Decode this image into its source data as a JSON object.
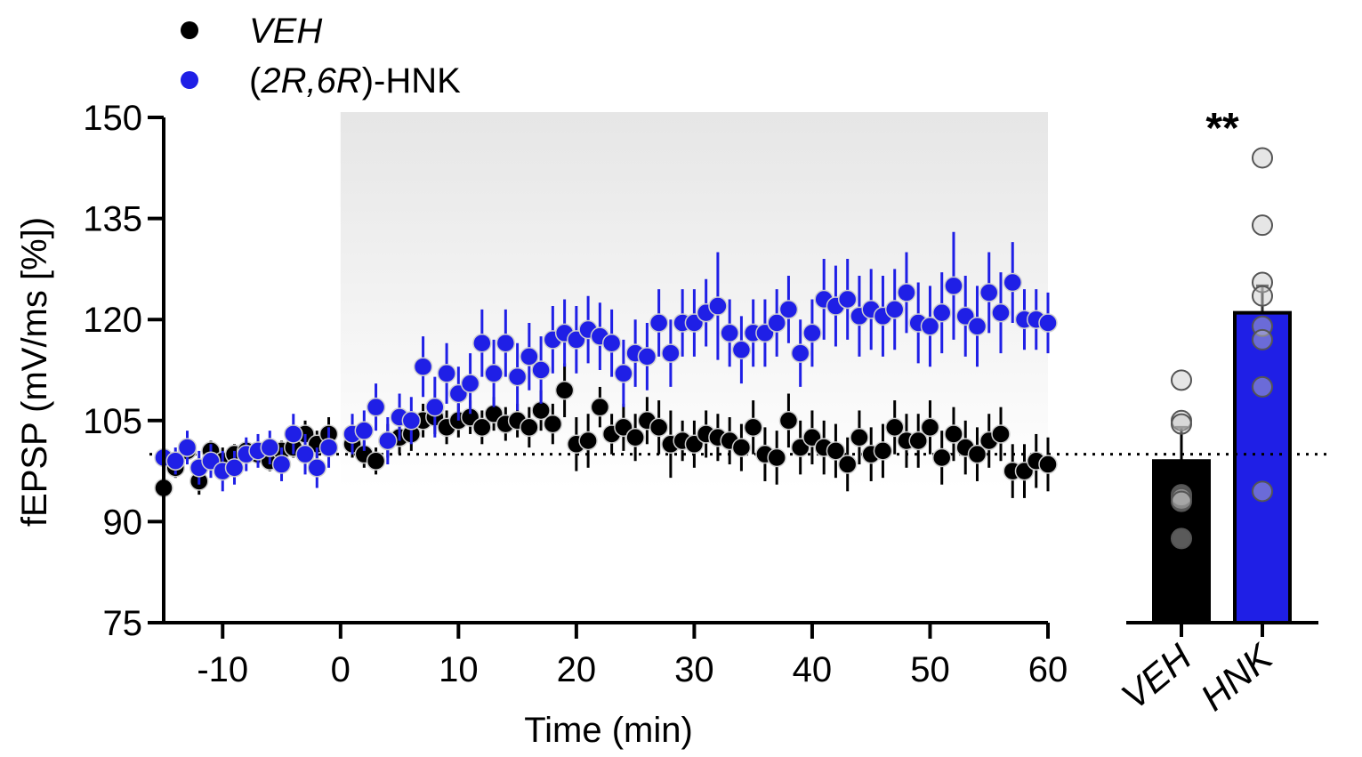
{
  "chart_data": [
    {
      "type": "scatter",
      "xlabel": "Time (min)",
      "ylabel": "fEPSP (mV/ms [%])",
      "xlim": [
        -15,
        60
      ],
      "ylim": [
        75,
        150
      ],
      "x_ticks": [
        -10,
        0,
        10,
        20,
        30,
        40,
        50,
        60
      ],
      "x_tick_labels": [
        "-10",
        "0",
        "10",
        "20",
        "30",
        "40",
        "50",
        "60"
      ],
      "y_ticks": [
        75,
        90,
        105,
        120,
        135,
        150
      ],
      "y_tick_labels": [
        "75",
        "90",
        "105",
        "120",
        "135",
        "150"
      ],
      "baseline": 100,
      "shaded_region": [
        0,
        60
      ],
      "legend_position": "top-left",
      "legend": [
        {
          "label_pre": "",
          "label_ital": "VEH",
          "label_post": "",
          "color": "#000000"
        },
        {
          "label_pre": "(",
          "label_ital": "2R,6R",
          "label_post": ")-HNK",
          "color": "#1f1fe6"
        }
      ],
      "series": [
        {
          "name": "VEH",
          "color": "#000000",
          "x": [
            -15,
            -14,
            -13,
            -12,
            -11,
            -10,
            -9,
            -8,
            -7,
            -6,
            -5,
            -4,
            -3,
            -2,
            -1,
            1,
            2,
            3,
            4,
            5,
            6,
            7,
            8,
            9,
            10,
            11,
            12,
            13,
            14,
            15,
            16,
            17,
            18,
            19,
            20,
            21,
            22,
            23,
            24,
            25,
            26,
            27,
            28,
            29,
            30,
            31,
            32,
            33,
            34,
            35,
            36,
            37,
            38,
            39,
            40,
            41,
            42,
            43,
            44,
            45,
            46,
            47,
            48,
            49,
            50,
            51,
            52,
            53,
            54,
            55,
            56,
            57,
            58,
            59,
            60
          ],
          "y": [
            95,
            98,
            100.5,
            96,
            100.5,
            99,
            100,
            100.5,
            100,
            99,
            100.5,
            101,
            103,
            101.5,
            103,
            101.5,
            100,
            99,
            102,
            102.5,
            103,
            105,
            105.5,
            104,
            105,
            105.5,
            104,
            106,
            104.5,
            105,
            104,
            106.5,
            104.5,
            109.5,
            101.5,
            102,
            107,
            103,
            104,
            102.5,
            105,
            104,
            101.5,
            102,
            101.5,
            103,
            102.5,
            102,
            101,
            104,
            100,
            99.5,
            105,
            101,
            102.5,
            101,
            100.5,
            98.5,
            102.5,
            100,
            100.5,
            104,
            102,
            102,
            104,
            99.5,
            103,
            101,
            100,
            102,
            103,
            97.5,
            97.5,
            99,
            98.5
          ],
          "err": [
            1.5,
            1.5,
            2,
            2,
            1.5,
            2,
            1.5,
            1.5,
            1.5,
            1.5,
            1.5,
            1.5,
            2,
            2,
            2.5,
            2,
            2,
            2,
            2.5,
            2.5,
            2.5,
            2.5,
            2.5,
            2.5,
            2.5,
            2.5,
            2.5,
            2.5,
            2.5,
            2.5,
            3,
            3,
            3,
            4,
            4,
            4,
            3,
            3,
            3.5,
            3.5,
            3.5,
            4,
            5,
            3,
            3.5,
            3.5,
            3.5,
            3.5,
            3.5,
            4,
            4,
            4,
            4,
            4,
            4,
            4,
            4,
            4,
            4,
            4,
            4,
            4,
            4,
            4,
            4,
            4,
            4,
            4,
            4,
            4,
            4,
            4,
            4,
            4,
            4
          ]
        },
        {
          "name": "(2R,6R)-HNK",
          "color": "#1f1fe6",
          "x": [
            -15,
            -14,
            -13,
            -12,
            -11,
            -10,
            -9,
            -8,
            -7,
            -6,
            -5,
            -4,
            -3,
            -2,
            -1,
            1,
            2,
            3,
            4,
            5,
            6,
            7,
            8,
            9,
            10,
            11,
            12,
            13,
            14,
            15,
            16,
            17,
            18,
            19,
            20,
            21,
            22,
            23,
            24,
            25,
            26,
            27,
            28,
            29,
            30,
            31,
            32,
            33,
            34,
            35,
            36,
            37,
            38,
            39,
            40,
            41,
            42,
            43,
            44,
            45,
            46,
            47,
            48,
            49,
            50,
            51,
            52,
            53,
            54,
            55,
            56,
            57,
            58,
            59,
            60
          ],
          "y": [
            99.5,
            99,
            101,
            98,
            99,
            97.5,
            98,
            100,
            100.5,
            101,
            98.5,
            103,
            100,
            98,
            101,
            103,
            103.5,
            107,
            102,
            105.5,
            105,
            113,
            107,
            112,
            109,
            110.5,
            116.5,
            112,
            116.5,
            111.5,
            114.5,
            112.5,
            117,
            118,
            117,
            118.5,
            117.5,
            116.5,
            112,
            115,
            114.5,
            119.5,
            115,
            119.5,
            119.5,
            121,
            122,
            118,
            115.5,
            118,
            118,
            119.5,
            121.5,
            115,
            118,
            123,
            122,
            123,
            120.5,
            121.5,
            120.5,
            121.5,
            124,
            119.5,
            119,
            121,
            125,
            120.5,
            119,
            124,
            121,
            125.5,
            120,
            120,
            119.5
          ],
          "err": [
            2,
            2,
            2.5,
            2.5,
            2.5,
            3,
            2.5,
            2.5,
            2.5,
            2.5,
            2.5,
            3,
            3,
            3,
            3,
            3,
            3,
            3.5,
            3.5,
            3.5,
            3.5,
            4.5,
            4.5,
            4.5,
            4,
            4.5,
            5,
            5,
            5,
            5,
            5,
            5,
            5,
            5,
            5,
            5,
            5,
            5,
            5,
            5,
            5,
            5,
            5,
            5,
            5,
            5,
            8,
            5,
            5,
            5,
            5,
            5,
            5,
            5,
            5,
            6,
            6,
            6,
            6,
            6,
            6,
            6,
            6,
            6,
            6,
            6,
            8,
            6,
            6,
            6,
            6,
            6,
            4.5,
            4.5,
            4.5
          ]
        }
      ]
    },
    {
      "type": "bar",
      "categories": [
        "VEH",
        "HNK"
      ],
      "values": [
        99,
        121
      ],
      "errors": [
        5,
        4
      ],
      "colors": [
        "#000000",
        "#1f1fe6"
      ],
      "ylim": [
        75,
        150
      ],
      "baseline": 100,
      "annotation": "**",
      "points": [
        [
          111,
          105,
          104.5,
          94,
          93.5,
          93,
          87.5
        ],
        [
          144,
          134,
          125.5,
          123.5,
          119,
          117,
          110,
          94.5
        ]
      ]
    }
  ]
}
